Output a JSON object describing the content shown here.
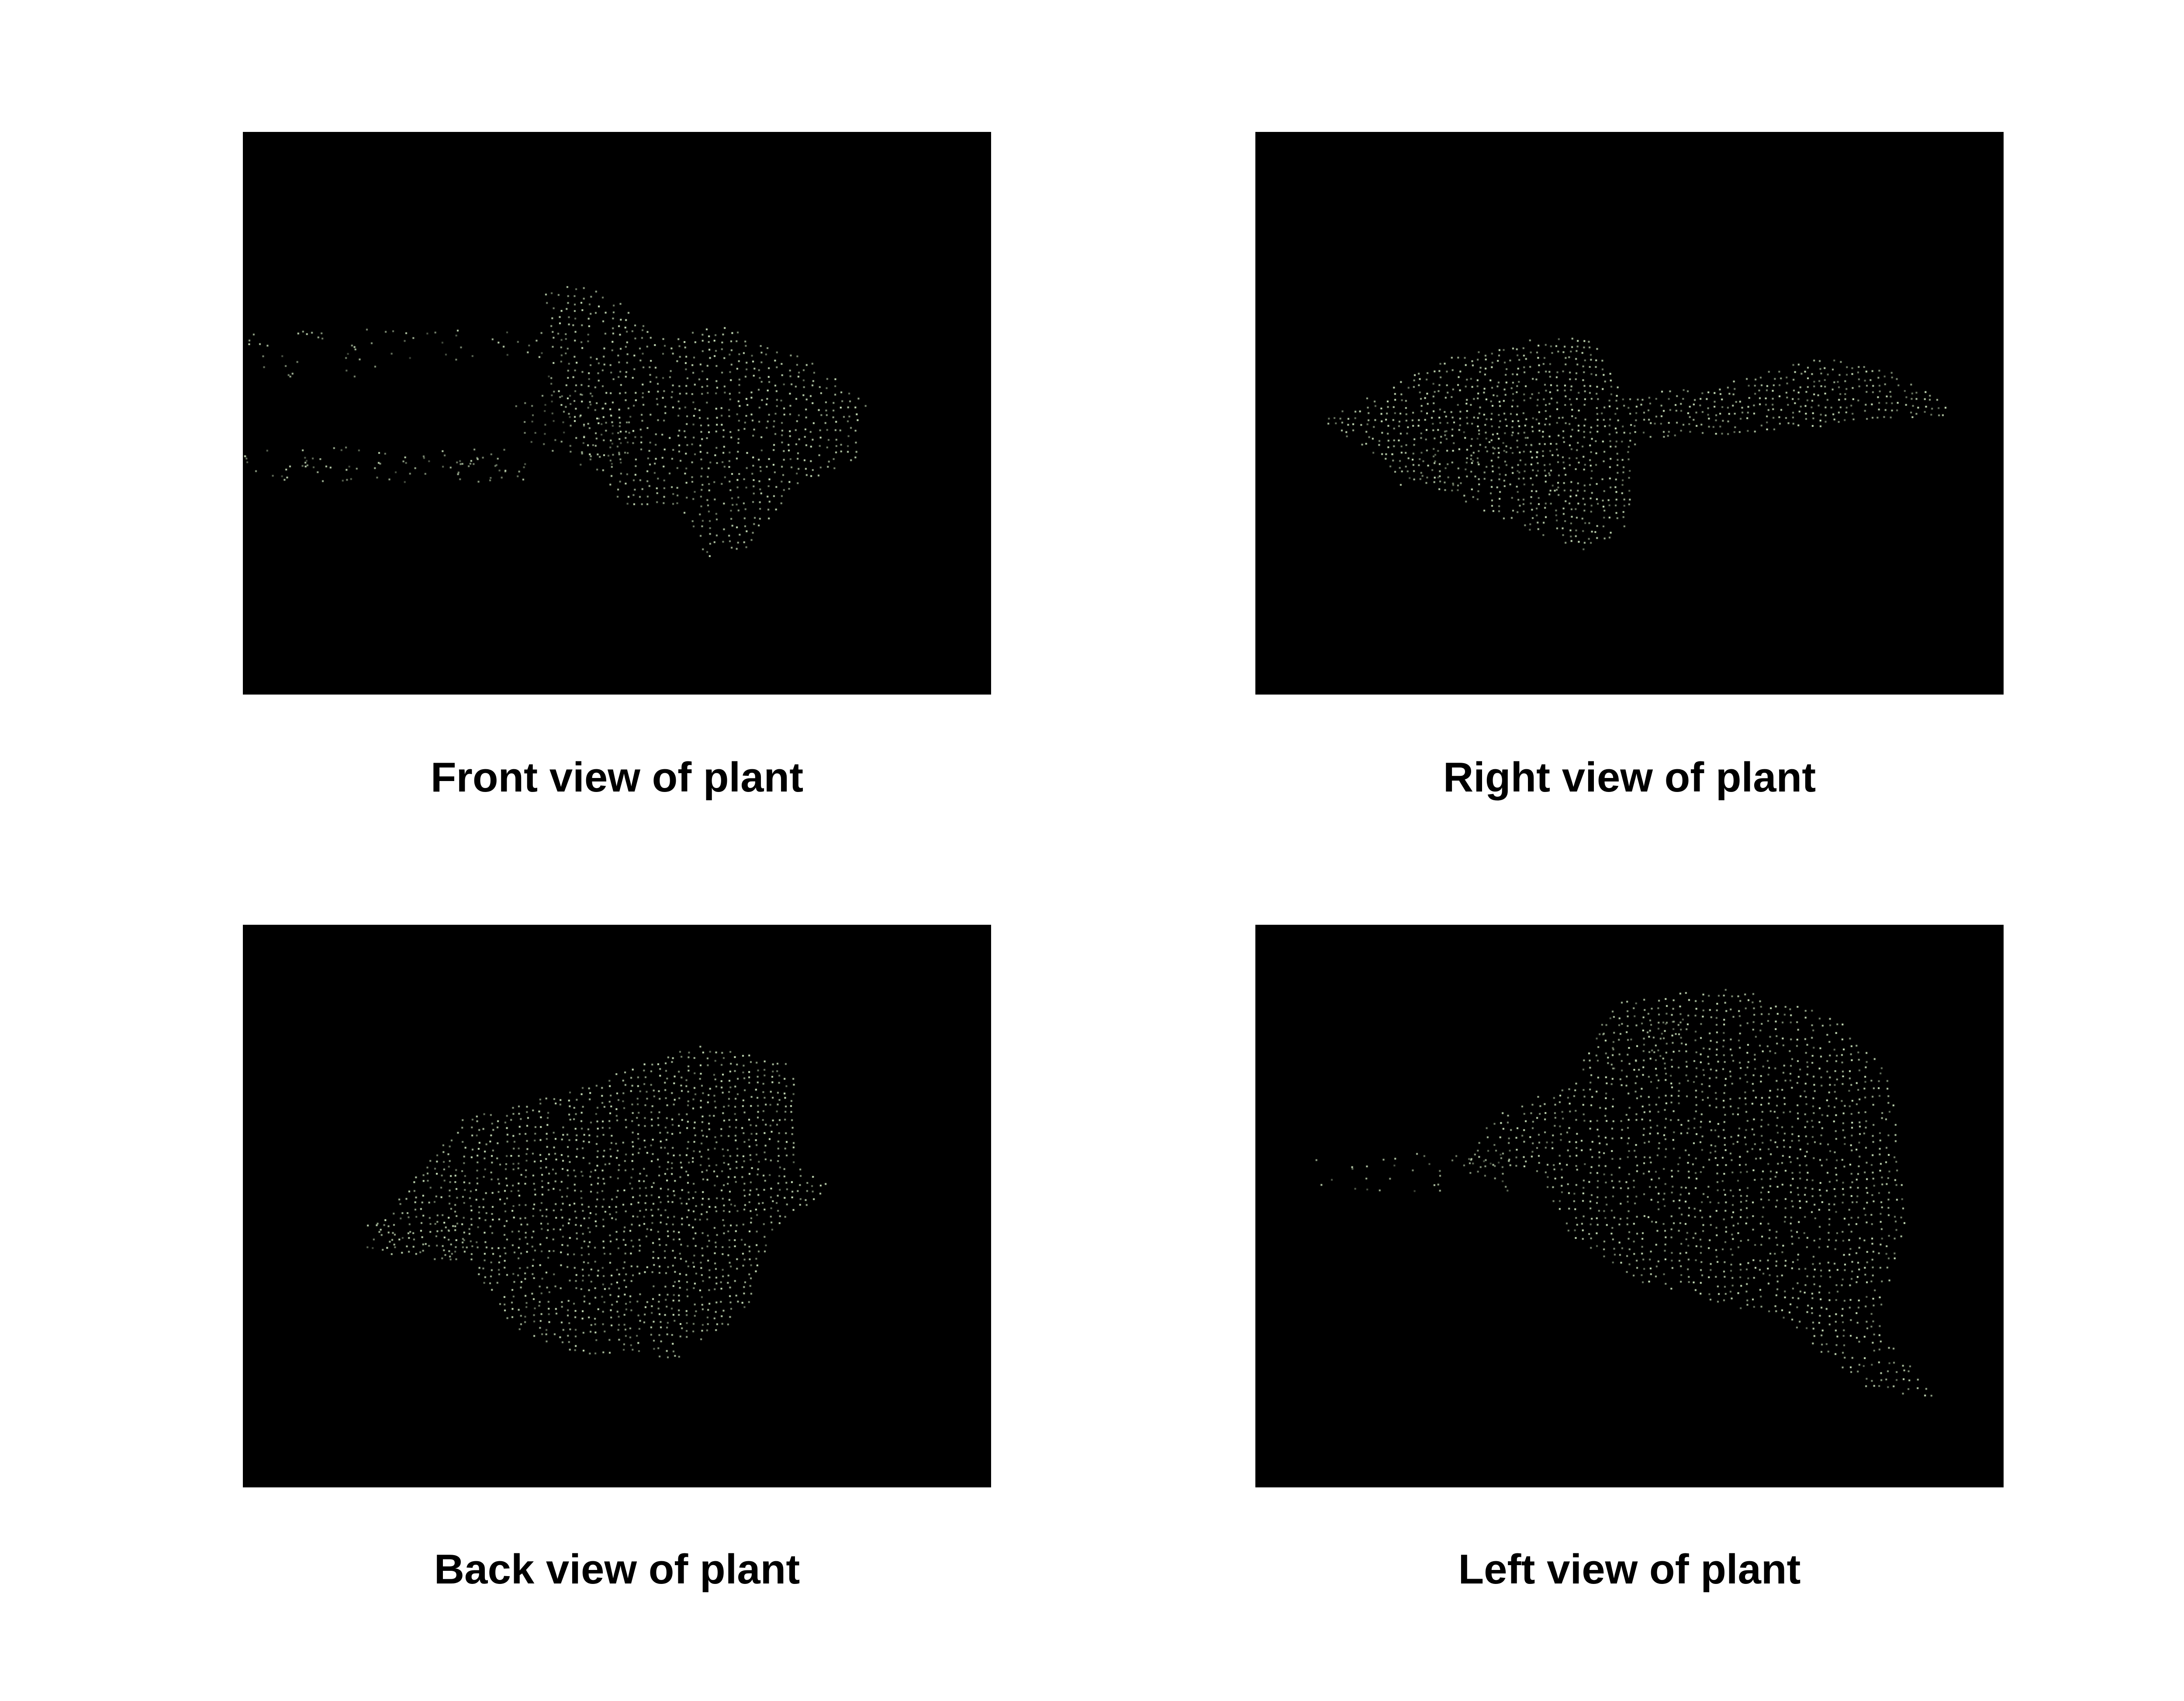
{
  "figure": {
    "background_color": "#ffffff",
    "panel_background": "#000000",
    "point_color": "#d8f0c8",
    "panels": [
      {
        "caption": "Front view of plant",
        "view": "front"
      },
      {
        "caption": "Right view of plant",
        "view": "right"
      },
      {
        "caption": "Back view of plant",
        "view": "back"
      },
      {
        "caption": "Left view of plant",
        "view": "left"
      }
    ]
  }
}
